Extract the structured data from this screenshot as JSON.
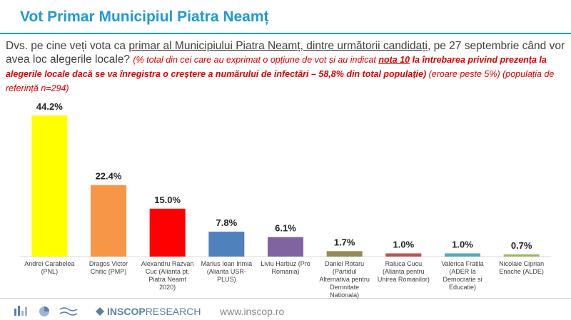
{
  "chart_data": {
    "type": "bar",
    "title": "Vot Primar Municipiul Piatra Neamț",
    "categories": [
      "Andrei Carabelea (PNL)",
      "Dragos Victor Chitic (PMP)",
      "Alexandru Razvan Cuc (Alianta pt. Piatra Neamt 2020)",
      "Marius Ioan Irimia (Alianta USR-PLUS)",
      "Liviu Harbuz (Pro Romania)",
      "Daniel Rotaru (Partidul Alternativa pentru Demnitate Nationala)",
      "Raluca Cucu (Alianta pentru Unirea Romanilor)",
      "Valerica Fratila (ADER la Democratie si Educatie)",
      "Nicolaie Ciprian Enache (ALDE)"
    ],
    "values": [
      44.2,
      22.4,
      15.0,
      7.8,
      6.1,
      1.7,
      1.0,
      1.0,
      0.7
    ],
    "value_labels": [
      "44.2%",
      "22.4%",
      "15.0%",
      "7.8%",
      "6.1%",
      "1.7%",
      "1.0%",
      "1.0%",
      "0.7%"
    ],
    "colors": [
      "#ffff00",
      "#f79646",
      "#ff0000",
      "#4f81bd",
      "#8064a2",
      "#948a54",
      "#c0504d",
      "#4bacc6",
      "#9bbb59"
    ]
  },
  "question": {
    "part1": "Dvs. pe cine veți vota ca ",
    "part2": "primar al Municipiului Piatra Neamț, dintre următorii candidați",
    "part3": ", pe 27 septembrie când vor avea loc alegerile locale? ",
    "note1": "(% total din cei care au exprimat o opțiune de vot și au indicat ",
    "note2": "nota 10",
    "note3": " la întrebarea privind prezența la alegerile locale dacă se va înregistra o creștere a numărului de infectări – 58,8% din total populație)",
    "note4": " (eroare peste 5%) (populația de referință n=294)"
  },
  "footer": {
    "brand": "INSCOP",
    "brand2": "RESEARCH",
    "url": "www.inscop.ro"
  }
}
